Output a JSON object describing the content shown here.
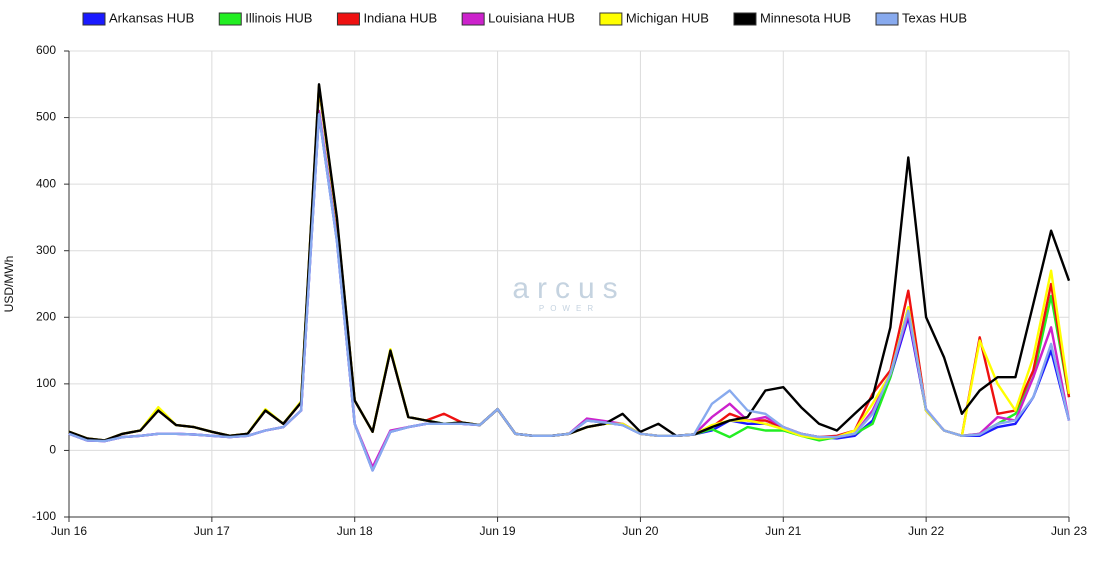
{
  "chart_data": {
    "type": "line",
    "y_label": "USD/MWh",
    "watermark": "arcus",
    "watermark_sub": "POWER",
    "categories": [
      "Jun 16",
      null,
      null,
      null,
      null,
      null,
      null,
      null,
      "Jun 17",
      null,
      null,
      null,
      null,
      null,
      null,
      null,
      "Jun 18",
      null,
      null,
      null,
      null,
      null,
      null,
      null,
      "Jun 19",
      null,
      null,
      null,
      null,
      null,
      null,
      null,
      "Jun 20",
      null,
      null,
      null,
      null,
      null,
      null,
      null,
      "Jun 21",
      null,
      null,
      null,
      null,
      null,
      null,
      null,
      "Jun 22",
      null,
      null,
      null,
      null,
      null,
      null,
      null,
      "Jun 23"
    ],
    "series": [
      {
        "name": "Arkansas HUB",
        "color": "#1a1aff",
        "values": [
          25,
          15,
          14,
          20,
          22,
          25,
          25,
          24,
          22,
          20,
          22,
          30,
          35,
          60,
          505,
          315,
          40,
          -30,
          28,
          35,
          40,
          40,
          40,
          38,
          62,
          25,
          22,
          22,
          25,
          45,
          42,
          38,
          25,
          22,
          22,
          24,
          30,
          45,
          40,
          40,
          33,
          25,
          20,
          18,
          22,
          45,
          110,
          200,
          60,
          30,
          22,
          22,
          35,
          40,
          80,
          150,
          45
        ]
      },
      {
        "name": "Illinois HUB",
        "color": "#22ee22",
        "values": [
          28,
          18,
          15,
          25,
          30,
          60,
          38,
          35,
          28,
          22,
          25,
          60,
          40,
          72,
          545,
          345,
          75,
          28,
          150,
          50,
          45,
          40,
          42,
          38,
          62,
          25,
          22,
          22,
          25,
          35,
          40,
          40,
          25,
          22,
          22,
          24,
          32,
          20,
          35,
          30,
          30,
          22,
          15,
          20,
          25,
          40,
          110,
          215,
          60,
          30,
          22,
          25,
          40,
          55,
          110,
          232,
          80
        ]
      },
      {
        "name": "Indiana HUB",
        "color": "#ee1111",
        "values": [
          28,
          18,
          15,
          25,
          30,
          60,
          38,
          35,
          28,
          22,
          25,
          60,
          40,
          72,
          546,
          346,
          75,
          28,
          150,
          50,
          45,
          55,
          42,
          38,
          62,
          25,
          22,
          22,
          25,
          35,
          40,
          40,
          25,
          22,
          22,
          24,
          35,
          55,
          45,
          45,
          35,
          25,
          20,
          22,
          30,
          85,
          120,
          240,
          60,
          30,
          22,
          170,
          55,
          60,
          120,
          250,
          80
        ]
      },
      {
        "name": "Louisiana HUB",
        "color": "#cc22cc",
        "values": [
          25,
          15,
          14,
          20,
          22,
          25,
          25,
          24,
          22,
          20,
          22,
          30,
          35,
          60,
          510,
          318,
          40,
          -25,
          30,
          35,
          40,
          40,
          40,
          38,
          62,
          25,
          22,
          22,
          25,
          48,
          44,
          40,
          25,
          22,
          22,
          24,
          50,
          70,
          45,
          50,
          35,
          25,
          20,
          20,
          25,
          60,
          115,
          205,
          62,
          30,
          22,
          25,
          50,
          45,
          110,
          185,
          45
        ]
      },
      {
        "name": "Michigan HUB",
        "color": "#ffff00",
        "values": [
          28,
          18,
          15,
          25,
          30,
          65,
          38,
          35,
          28,
          22,
          25,
          62,
          40,
          74,
          548,
          348,
          75,
          28,
          152,
          50,
          45,
          40,
          42,
          38,
          62,
          25,
          22,
          22,
          25,
          35,
          40,
          40,
          25,
          22,
          22,
          24,
          38,
          45,
          45,
          40,
          32,
          22,
          18,
          20,
          30,
          70,
          115,
          215,
          60,
          30,
          22,
          165,
          100,
          60,
          140,
          270,
          85
        ]
      },
      {
        "name": "Minnesota HUB",
        "color": "#000000",
        "values": [
          28,
          18,
          15,
          25,
          30,
          60,
          38,
          35,
          28,
          22,
          25,
          60,
          40,
          72,
          550,
          350,
          75,
          28,
          150,
          50,
          45,
          40,
          42,
          38,
          62,
          25,
          22,
          22,
          25,
          35,
          40,
          55,
          28,
          40,
          22,
          24,
          35,
          45,
          50,
          90,
          95,
          65,
          40,
          30,
          55,
          80,
          185,
          440,
          200,
          140,
          55,
          90,
          110,
          110,
          220,
          330,
          255
        ]
      },
      {
        "name": "Texas HUB",
        "color": "#88aaee",
        "values": [
          25,
          15,
          14,
          20,
          22,
          25,
          25,
          24,
          22,
          20,
          22,
          30,
          35,
          60,
          505,
          315,
          40,
          -30,
          28,
          35,
          40,
          40,
          40,
          38,
          62,
          25,
          22,
          22,
          25,
          45,
          42,
          38,
          25,
          22,
          22,
          24,
          70,
          90,
          60,
          55,
          35,
          25,
          20,
          20,
          25,
          55,
          115,
          210,
          62,
          30,
          22,
          24,
          40,
          45,
          80,
          160,
          45
        ]
      }
    ],
    "ylim": [
      -100,
      600
    ],
    "yticks": [
      -100,
      0,
      100,
      200,
      300,
      400,
      500,
      600
    ],
    "grid": true,
    "legend": "top"
  }
}
